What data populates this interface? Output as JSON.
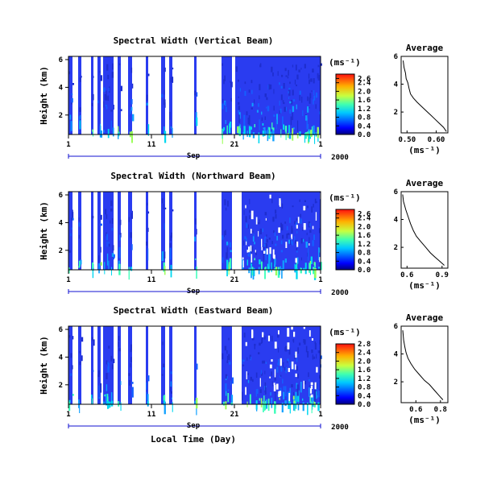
{
  "figure": {
    "xlabel": "Local Time (Day)",
    "month_label": "Sep",
    "year_label": "2000",
    "x_ticks": [
      "1",
      "11",
      "21",
      "1"
    ],
    "ylabel": "Height (km)",
    "y_ticks": [
      "6",
      "4",
      "2"
    ],
    "colorbar_unit": "(ms⁻¹)",
    "avg_title": "Average",
    "avg_xlabel": "(ms⁻¹)"
  },
  "chart_data": [
    {
      "type": "heatmap",
      "title": "Spectral Width (Vertical Beam)",
      "x_range_days": [
        1,
        31
      ],
      "ylim_km": [
        0.6,
        6
      ],
      "colorbar": {
        "ticks": [
          "2.6",
          "2.4",
          "2.0",
          "1.6",
          "1.2",
          "0.8",
          "0.4",
          "0.0"
        ],
        "range": [
          0,
          2.8
        ]
      },
      "average_profile": {
        "title": "Average",
        "xticks": [
          "0.50",
          "0.60"
        ],
        "xlim": [
          0.48,
          0.64
        ],
        "ylim": [
          0.5,
          6
        ],
        "yticks": [
          "6",
          "4",
          "2"
        ],
        "points": [
          [
            0.487,
            5.7
          ],
          [
            0.49,
            5.2
          ],
          [
            0.495,
            4.8
          ],
          [
            0.497,
            4.4
          ],
          [
            0.503,
            4.1
          ],
          [
            0.507,
            3.7
          ],
          [
            0.512,
            3.3
          ],
          [
            0.522,
            3.0
          ],
          [
            0.535,
            2.7
          ],
          [
            0.55,
            2.4
          ],
          [
            0.565,
            2.1
          ],
          [
            0.58,
            1.8
          ],
          [
            0.595,
            1.5
          ],
          [
            0.61,
            1.2
          ],
          [
            0.625,
            0.9
          ],
          [
            0.635,
            0.6
          ]
        ]
      }
    },
    {
      "type": "heatmap",
      "title": "Spectral Width (Northward Beam)",
      "x_range_days": [
        1,
        31
      ],
      "ylim_km": [
        0.6,
        6
      ],
      "colorbar": {
        "ticks": [
          "2.6",
          "2.4",
          "2.0",
          "1.6",
          "1.2",
          "0.8",
          "0.4",
          "0.0"
        ],
        "range": [
          0,
          2.8
        ]
      },
      "average_profile": {
        "title": "Average",
        "xticks": [
          "0.6",
          "0.9"
        ],
        "xlim": [
          0.55,
          0.95
        ],
        "ylim": [
          0.5,
          6
        ],
        "yticks": [
          "6",
          "4",
          "2"
        ],
        "points": [
          [
            0.563,
            5.8
          ],
          [
            0.57,
            5.3
          ],
          [
            0.59,
            4.7
          ],
          [
            0.61,
            4.2
          ],
          [
            0.63,
            3.7
          ],
          [
            0.655,
            3.2
          ],
          [
            0.68,
            2.8
          ],
          [
            0.72,
            2.4
          ],
          [
            0.76,
            2.0
          ],
          [
            0.8,
            1.6
          ],
          [
            0.84,
            1.3
          ],
          [
            0.88,
            1.0
          ],
          [
            0.92,
            0.7
          ]
        ]
      }
    },
    {
      "type": "heatmap",
      "title": "Spectral Width (Eastward Beam)",
      "x_range_days": [
        1,
        31
      ],
      "ylim_km": [
        0.6,
        6
      ],
      "colorbar": {
        "ticks": [
          "2.8",
          "2.4",
          "2.0",
          "1.6",
          "1.2",
          "0.8",
          "0.4",
          "0.0"
        ],
        "range": [
          0,
          2.8
        ]
      },
      "average_profile": {
        "title": "Average",
        "xticks": [
          "0.6",
          "0.8"
        ],
        "xlim": [
          0.48,
          0.86
        ],
        "ylim": [
          0.5,
          6
        ],
        "yticks": [
          "6",
          "4",
          "2"
        ],
        "points": [
          [
            0.493,
            5.7
          ],
          [
            0.5,
            5.0
          ],
          [
            0.51,
            4.5
          ],
          [
            0.52,
            4.1
          ],
          [
            0.535,
            3.7
          ],
          [
            0.56,
            3.3
          ],
          [
            0.59,
            2.9
          ],
          [
            0.63,
            2.5
          ],
          [
            0.67,
            2.1
          ],
          [
            0.71,
            1.8
          ],
          [
            0.75,
            1.4
          ],
          [
            0.79,
            1.0
          ],
          [
            0.82,
            0.7
          ]
        ]
      }
    }
  ]
}
